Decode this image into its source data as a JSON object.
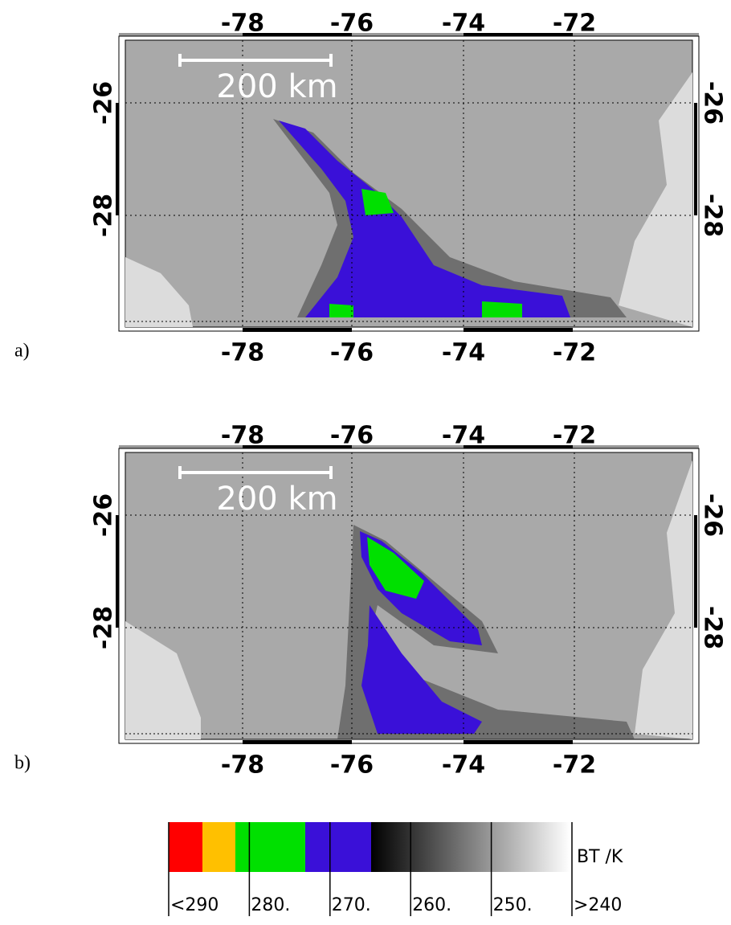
{
  "panels": [
    {
      "label": "a)",
      "lon_ticks": [
        "-78",
        "-76",
        "-74",
        "-72"
      ],
      "lat_ticks": [
        "-26",
        "-28"
      ],
      "scale_bar": "200 km"
    },
    {
      "label": "b)",
      "lon_ticks": [
        "-78",
        "-76",
        "-74",
        "-72"
      ],
      "lat_ticks": [
        "-26",
        "-28"
      ],
      "scale_bar": "200 km"
    }
  ],
  "colorbar": {
    "title": "BT /K",
    "labels": [
      "<290",
      "280.",
      "270.",
      "260.",
      "250.",
      ">240"
    ]
  }
}
